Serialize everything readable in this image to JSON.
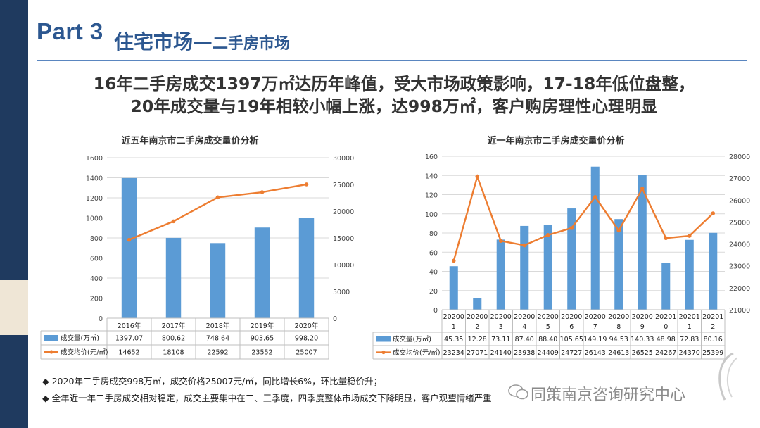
{
  "header": {
    "part_label": "Part 3",
    "section_title": "住宅市场—",
    "section_subtitle": "二手房市场"
  },
  "headline": {
    "line1": "16年二手房成交1397万㎡达历年峰值，受大市场政策影响，17-18年低位盘整，",
    "line2": "20年成交量与19年相较小幅上涨，达998万㎡，客户购房理性心理明显"
  },
  "chart_data": [
    {
      "type": "bar",
      "title": "近五年南京市二手房成交量价分析",
      "categories": [
        "2016年",
        "2017年",
        "2018年",
        "2019年",
        "2020年"
      ],
      "series": [
        {
          "name": "成交量(万㎡)",
          "kind": "bar",
          "axis": "left",
          "values": [
            1397.07,
            800.62,
            748.64,
            903.65,
            998.2
          ],
          "display": [
            "1397.07",
            "800.62",
            "748.64",
            "903.65",
            "998.20"
          ]
        },
        {
          "name": "成交均价(元/㎡)",
          "kind": "line",
          "axis": "right",
          "values": [
            14652,
            18108,
            22592,
            23552,
            25007
          ],
          "display": [
            "14652",
            "18108",
            "22592",
            "23552",
            "25007"
          ]
        }
      ],
      "ylim": [
        0,
        1600
      ],
      "y2lim": [
        0,
        30000
      ],
      "yticks": [
        "0",
        "200",
        "400",
        "600",
        "800",
        "1000",
        "1200",
        "1400",
        "1600"
      ],
      "y2ticks": [
        "0",
        "5000",
        "10000",
        "15000",
        "20000",
        "25000",
        "30000"
      ],
      "grid": true,
      "legend": "data-table"
    },
    {
      "type": "bar",
      "title": "近一年南京市二手房成交量价分析",
      "categories": [
        [
          "20200",
          "1"
        ],
        [
          "20200",
          "2"
        ],
        [
          "20200",
          "3"
        ],
        [
          "20200",
          "4"
        ],
        [
          "20200",
          "5"
        ],
        [
          "20200",
          "6"
        ],
        [
          "20200",
          "7"
        ],
        [
          "20200",
          "8"
        ],
        [
          "20200",
          "9"
        ],
        [
          "20201",
          "0"
        ],
        [
          "20201",
          "1"
        ],
        [
          "20201",
          "2"
        ]
      ],
      "series": [
        {
          "name": "成交量(万㎡)",
          "kind": "bar",
          "axis": "left",
          "values": [
            45.35,
            12.28,
            73.11,
            87.4,
            88.4,
            105.65,
            149.19,
            94.53,
            140.33,
            48.98,
            72.83,
            80.16
          ],
          "display": [
            "45.35",
            "12.28",
            "73.11",
            "87.40",
            "88.40",
            "105.65",
            "149.19",
            "94.53",
            "140.33",
            "48.98",
            "72.83",
            "80.16"
          ]
        },
        {
          "name": "成交均价(元/㎡)",
          "kind": "line",
          "axis": "right",
          "values": [
            23234,
            27071,
            24140,
            23938,
            24409,
            24727,
            26143,
            24613,
            26525,
            24267,
            24370,
            25399
          ],
          "display": [
            "23234",
            "27071",
            "24140",
            "23938",
            "24409",
            "24727",
            "26143",
            "24613",
            "26525",
            "24267",
            "24370",
            "25399"
          ]
        }
      ],
      "ylim": [
        0,
        160
      ],
      "y2lim": [
        21000,
        28000
      ],
      "yticks": [
        "0",
        "20",
        "40",
        "60",
        "80",
        "100",
        "120",
        "140",
        "160"
      ],
      "y2ticks": [
        "21000",
        "22000",
        "23000",
        "24000",
        "25000",
        "26000",
        "27000",
        "28000"
      ],
      "grid": true,
      "legend": "data-table"
    }
  ],
  "notes": {
    "item1": "◆ 2020年二手房成交998万㎡，成交价格25007元/㎡，同比增长6%，环比量稳价升；",
    "item2": "◆ 全年近一年二手房成交相对稳定，成交主要集中在二、三季度，四季度整体市场成交下降明显，客户观望情绪严重"
  },
  "watermark": {
    "text": "同策南京咨询研究中心"
  },
  "colors": {
    "bar": "#5b9bd5",
    "line": "#ed7d31",
    "title": "#2c5790",
    "sidebar": "#1f3a5f",
    "accent_block": "#efe6d6"
  }
}
